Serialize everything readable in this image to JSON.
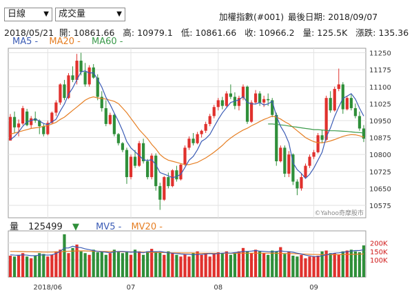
{
  "header": {
    "period_select": "日線",
    "indicator_select": "成交量",
    "index_title": "加權指數(#001)",
    "last_date_label": "最後日期:",
    "last_date": "2018/09/07"
  },
  "info": {
    "date": "2018/05/21",
    "open_label": "開:",
    "open": "10861.66",
    "high_label": "高:",
    "high": "10979.1",
    "low_label": "低:",
    "low": "10861.66",
    "close_label": "收:",
    "close": "10966.2",
    "volume_label": "量:",
    "volume": "125.5K",
    "change_label": "漲跌:",
    "change": "135.36"
  },
  "ma_legend": {
    "ma5": "MA5 -",
    "ma20": "MA20 -",
    "ma60": "MA60 -"
  },
  "volume_legend": {
    "label": "量",
    "value": "125499",
    "arrow": "▼",
    "mv5": "MV5 -",
    "mv20": "MV20 -"
  },
  "watermark": "©Yahoo奇摩股市",
  "colors": {
    "up": "#e0312d",
    "down": "#2f8f3a",
    "ma5": "#3a5bb5",
    "ma20": "#e67e22",
    "ma60": "#3a9a4a"
  },
  "chart_data": [
    {
      "type": "candlestick",
      "ylim": [
        10520,
        11270
      ],
      "yticks": [
        10575,
        10650,
        10725,
        10800,
        10875,
        10950,
        11025,
        11100,
        11175,
        11250
      ],
      "xticks": [
        "2018/06",
        "07",
        "08",
        "09"
      ],
      "candles": [
        [
          10861.7,
          10979.1,
          10861.7,
          10966.2
        ],
        [
          10966,
          10990,
          10895,
          10920
        ],
        [
          10920,
          10955,
          10880,
          10937
        ],
        [
          10937,
          11015,
          10930,
          11005
        ],
        [
          10990,
          11002,
          10925,
          10930
        ],
        [
          10930,
          10970,
          10915,
          10960
        ],
        [
          10960,
          10990,
          10940,
          10950
        ],
        [
          10950,
          10955,
          10890,
          10925
        ],
        [
          10925,
          10935,
          10880,
          10890
        ],
        [
          10890,
          10950,
          10885,
          10940
        ],
        [
          10940,
          10990,
          10935,
          10985
        ],
        [
          10985,
          11040,
          10970,
          11030
        ],
        [
          11030,
          11115,
          11020,
          11110
        ],
        [
          11110,
          11130,
          11040,
          11050
        ],
        [
          11050,
          11160,
          11045,
          11150
        ],
        [
          11150,
          11190,
          11120,
          11130
        ],
        [
          11130,
          11245,
          11110,
          11215
        ],
        [
          11215,
          11250,
          11150,
          11165
        ],
        [
          11165,
          11205,
          11100,
          11110
        ],
        [
          11110,
          11195,
          11100,
          11185
        ],
        [
          11185,
          11200,
          11135,
          11140
        ],
        [
          11140,
          11155,
          11040,
          11055
        ],
        [
          11055,
          11080,
          10990,
          11005
        ],
        [
          11005,
          11040,
          10925,
          10935
        ],
        [
          10935,
          10985,
          10930,
          10975
        ],
        [
          10975,
          10980,
          10880,
          10890
        ],
        [
          10890,
          10895,
          10840,
          10850
        ],
        [
          10850,
          10855,
          10810,
          10820
        ],
        [
          10820,
          10830,
          10670,
          10700
        ],
        [
          10700,
          10800,
          10690,
          10790
        ],
        [
          10790,
          10820,
          10740,
          10750
        ],
        [
          10750,
          10860,
          10745,
          10850
        ],
        [
          10850,
          10870,
          10760,
          10770
        ],
        [
          10770,
          10780,
          10690,
          10700
        ],
        [
          10700,
          10805,
          10690,
          10795
        ],
        [
          10795,
          10805,
          10640,
          10660
        ],
        [
          10660,
          10675,
          10555,
          10600
        ],
        [
          10600,
          10705,
          10595,
          10700
        ],
        [
          10700,
          10720,
          10650,
          10660
        ],
        [
          10660,
          10735,
          10655,
          10730
        ],
        [
          10730,
          10750,
          10680,
          10690
        ],
        [
          10690,
          10760,
          10685,
          10755
        ],
        [
          10755,
          10840,
          10750,
          10830
        ],
        [
          10830,
          10880,
          10820,
          10870
        ],
        [
          10870,
          10895,
          10840,
          10850
        ],
        [
          10850,
          10900,
          10845,
          10890
        ],
        [
          10890,
          10910,
          10875,
          10905
        ],
        [
          10905,
          10945,
          10895,
          10935
        ],
        [
          10935,
          10980,
          10925,
          10970
        ],
        [
          10970,
          11020,
          10960,
          11010
        ],
        [
          11010,
          11050,
          10995,
          11040
        ],
        [
          11040,
          11055,
          11000,
          11015
        ],
        [
          11015,
          11080,
          11010,
          11070
        ],
        [
          11070,
          11110,
          11045,
          11055
        ],
        [
          11055,
          11075,
          11000,
          11015
        ],
        [
          11015,
          11060,
          10995,
          11050
        ],
        [
          11050,
          11110,
          11040,
          11100
        ],
        [
          11100,
          11105,
          10935,
          10945
        ],
        [
          10945,
          11040,
          10940,
          11030
        ],
        [
          11030,
          11085,
          11025,
          11070
        ],
        [
          11070,
          11080,
          11015,
          11030
        ],
        [
          11030,
          11060,
          11010,
          11045
        ],
        [
          11045,
          11070,
          11015,
          11040
        ],
        [
          11040,
          11050,
          10965,
          10975
        ],
        [
          10975,
          10985,
          10750,
          10770
        ],
        [
          10770,
          10840,
          10765,
          10830
        ],
        [
          10830,
          10840,
          10700,
          10715
        ],
        [
          10715,
          10815,
          10700,
          10800
        ],
        [
          10800,
          10805,
          10665,
          10680
        ],
        [
          10680,
          10690,
          10620,
          10650
        ],
        [
          10650,
          10715,
          10640,
          10700
        ],
        [
          10700,
          10760,
          10695,
          10750
        ],
        [
          10750,
          10800,
          10740,
          10790
        ],
        [
          10790,
          10820,
          10780,
          10810
        ],
        [
          10810,
          10895,
          10805,
          10885
        ],
        [
          10885,
          10910,
          10850,
          10865
        ],
        [
          10865,
          11060,
          10860,
          11050
        ],
        [
          11050,
          11080,
          10985,
          10995
        ],
        [
          10995,
          11100,
          10990,
          11090
        ],
        [
          11090,
          11180,
          11080,
          11110
        ],
        [
          11110,
          11120,
          10980,
          11000
        ],
        [
          11000,
          11060,
          10995,
          11050
        ],
        [
          11050,
          11065,
          10995,
          11005
        ],
        [
          11005,
          11025,
          10960,
          10970
        ],
        [
          10970,
          10990,
          10905,
          10915
        ],
        [
          10915,
          10930,
          10855,
          10870
        ]
      ],
      "ma5": [
        10865,
        10880,
        10900,
        10925,
        10945,
        10950,
        10957,
        10948,
        10937,
        10932,
        10944,
        10956,
        10992,
        11023,
        11066,
        11094,
        11131,
        11165,
        11170,
        11160,
        11162,
        11132,
        11098,
        11053,
        11021,
        10983,
        10947,
        10905,
        10857,
        10829,
        10812,
        10795,
        10777,
        10773,
        10777,
        10755,
        10720,
        10713,
        10706,
        10697,
        10703,
        10712,
        10743,
        10775,
        10792,
        10821,
        10858,
        10870,
        10889,
        10922,
        10955,
        10984,
        11007,
        11030,
        11036,
        11042,
        11056,
        11030,
        11024,
        11023,
        11030,
        11019,
        11024,
        11036,
        10970,
        10925,
        10894,
        10851,
        10763,
        10733,
        10716,
        10694,
        10712,
        10740,
        10775,
        10810,
        10878,
        10917,
        10968,
        11010,
        11048,
        11058,
        11069,
        11045,
        11005,
        10970
      ],
      "ma20": [
        10890,
        10895,
        10900,
        10905,
        10910,
        10915,
        10918,
        10920,
        10925,
        10928,
        10935,
        10942,
        10955,
        10965,
        10980,
        10995,
        11010,
        11025,
        11040,
        11050,
        11055,
        11050,
        11048,
        11045,
        11040,
        11035,
        11025,
        11005,
        10985,
        10960,
        10935,
        10910,
        10890,
        10870,
        10845,
        10825,
        10800,
        10785,
        10775,
        10770,
        10765,
        10760,
        10755,
        10755,
        10760,
        10765,
        10775,
        10785,
        10797,
        10810,
        10825,
        10840,
        10858,
        10873,
        10886,
        10897,
        10908,
        10916,
        10927,
        10936,
        10946,
        10955,
        10962,
        10970,
        10965,
        10957,
        10945,
        10935,
        10920,
        10905,
        10890,
        10875,
        10865,
        10857,
        10852,
        10852,
        10855,
        10860,
        10866,
        10873,
        10880,
        10885,
        10888,
        10887,
        10883,
        10877
      ],
      "ma60_start_index": 62,
      "ma60": [
        10935,
        10935,
        10933,
        10931,
        10929,
        10926,
        10923,
        10921,
        10918,
        10915,
        10913,
        10910,
        10910,
        10908,
        10907,
        10905,
        10905,
        10904,
        10903,
        10902,
        10900,
        10898,
        10897,
        10895
      ]
    },
    {
      "type": "bar",
      "name": "量",
      "ylim": [
        0,
        270
      ],
      "yticks": [
        "100K",
        "150K",
        "200K"
      ],
      "yticks_values": [
        100,
        150,
        200
      ],
      "values": [
        125,
        120,
        130,
        140,
        120,
        110,
        125,
        140,
        135,
        120,
        130,
        150,
        160,
        250,
        140,
        170,
        190,
        150,
        140,
        130,
        160,
        145,
        150,
        130,
        140,
        160,
        150,
        140,
        150,
        130,
        160,
        150,
        130,
        150,
        165,
        150,
        145,
        130,
        150,
        140,
        130,
        120,
        135,
        120,
        140,
        150,
        130,
        140,
        120,
        135,
        145,
        140,
        150,
        130,
        145,
        150,
        170,
        150,
        140,
        160,
        150,
        140,
        130,
        155,
        150,
        175,
        135,
        150,
        125,
        120,
        130,
        110,
        120,
        120,
        125,
        150,
        155,
        140,
        140,
        130,
        150,
        155,
        160,
        150,
        145,
        185
      ],
      "mv5": [
        130,
        128,
        127,
        130,
        128,
        125,
        125,
        128,
        130,
        128,
        130,
        138,
        150,
        170,
        170,
        180,
        175,
        172,
        165,
        160,
        155,
        150,
        148,
        145,
        142,
        148,
        150,
        150,
        148,
        145,
        147,
        145,
        142,
        148,
        150,
        148,
        150,
        145,
        142,
        140,
        138,
        135,
        133,
        132,
        130,
        132,
        133,
        135,
        137,
        135,
        138,
        140,
        142,
        140,
        143,
        145,
        150,
        150,
        152,
        155,
        152,
        150,
        148,
        147,
        150,
        153,
        150,
        148,
        145,
        140,
        135,
        128,
        124,
        120,
        120,
        125,
        130,
        135,
        140,
        142,
        145,
        148,
        152,
        155,
        155,
        160
      ],
      "mv20": [
        150,
        150,
        149,
        149,
        148,
        148,
        147,
        147,
        146,
        146,
        146,
        147,
        148,
        150,
        151,
        152,
        153,
        153,
        153,
        152,
        151,
        151,
        150,
        150,
        149,
        149,
        148,
        148,
        147,
        147,
        146,
        146,
        145,
        145,
        144,
        144,
        144,
        143,
        143,
        142,
        142,
        142,
        141,
        141,
        141,
        140,
        140,
        140,
        140,
        140,
        139,
        139,
        139,
        139,
        139,
        140,
        140,
        140,
        140,
        140,
        140,
        140,
        140,
        140,
        139,
        139,
        138,
        138,
        137,
        136,
        135,
        134,
        133,
        132,
        132,
        131,
        131,
        131,
        131,
        131,
        132,
        132,
        133,
        133,
        134,
        135
      ]
    }
  ]
}
